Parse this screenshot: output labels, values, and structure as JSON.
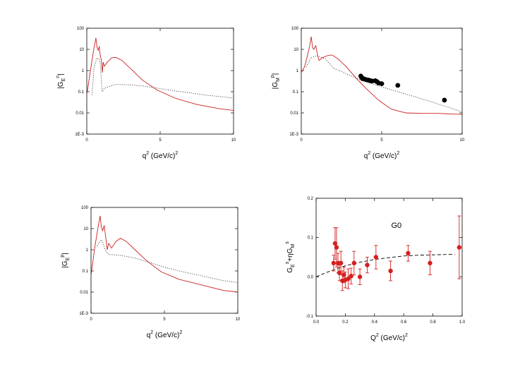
{
  "colors": {
    "model": "#cc1f1f",
    "dotted": "#000000",
    "data": "#000000",
    "g0": "#d42020"
  },
  "chart_data": [
    {
      "id": "top-left",
      "type": "line",
      "scale": "log",
      "ylabel": "|G_E^n|",
      "ylabel_main": "|G",
      "ylabel_sub": "E",
      "ylabel_sup": "n",
      "ylabel_end": "|",
      "xlabel": "q",
      "xlabel_sup": "2",
      "xlabel_rest": " (GeV/c)",
      "xlabel_sup2": "2",
      "xlim": [
        0,
        10
      ],
      "ylim": [
        0.001,
        100
      ],
      "xticks": [
        0,
        5,
        10
      ],
      "xticklabels": [
        "0",
        "5",
        "10"
      ],
      "yticks": [
        100,
        10,
        1,
        0.1,
        0.01,
        0.001
      ],
      "yticklabels": [
        "100",
        "10",
        "1",
        "0.1",
        "0.01",
        "1E-3"
      ],
      "series": [
        {
          "name": "model",
          "style": "solid",
          "x": [
            0,
            0.25,
            0.45,
            0.62,
            0.7,
            0.78,
            0.85,
            0.92,
            1.0,
            1.06,
            1.12,
            1.2,
            1.4,
            1.7,
            2.0,
            2.4,
            3.0,
            3.8,
            4.8,
            6.0,
            7.5,
            9.0,
            10.0
          ],
          "y": [
            0.07,
            1.0,
            8.0,
            35,
            12,
            9,
            14,
            5,
            3,
            0.8,
            2.5,
            1.6,
            2.5,
            4,
            4.2,
            3.0,
            1.2,
            0.35,
            0.12,
            0.05,
            0.025,
            0.016,
            0.013
          ]
        },
        {
          "name": "dotted",
          "style": "dotted",
          "x": [
            0.35,
            0.5,
            0.7,
            0.9,
            1.05,
            1.2,
            2.0,
            3.0,
            4.0,
            5.0,
            6.0,
            7.0,
            8.0,
            9.0,
            10.0
          ],
          "y": [
            0.07,
            1.5,
            4,
            3,
            0.1,
            0.15,
            0.22,
            0.21,
            0.18,
            0.14,
            0.11,
            0.09,
            0.07,
            0.06,
            0.05
          ]
        }
      ]
    },
    {
      "id": "top-right",
      "type": "line",
      "scale": "log",
      "ylabel": "|G_M^p|",
      "ylabel_main": "|G",
      "ylabel_sub": "M",
      "ylabel_sup": "p",
      "ylabel_end": "|",
      "xlabel": "q",
      "xlabel_sup": "2",
      "xlabel_rest": " (GeV/c)",
      "xlabel_sup2": "2",
      "xlim": [
        0,
        10
      ],
      "ylim": [
        0.001,
        100
      ],
      "xticks": [
        0,
        5,
        10
      ],
      "xticklabels": [
        "0",
        "5",
        "10"
      ],
      "yticks": [
        100,
        10,
        1,
        0.1,
        0.01,
        0.001
      ],
      "yticklabels": [
        "100",
        "10",
        "1",
        "0.1",
        "0.01",
        "1E-3"
      ],
      "series": [
        {
          "name": "model",
          "style": "solid",
          "x": [
            0,
            0.2,
            0.35,
            0.5,
            0.62,
            0.7,
            0.78,
            0.9,
            1.0,
            1.1,
            1.3,
            1.6,
            1.9,
            2.3,
            2.8,
            3.4,
            4.0,
            4.8,
            5.6,
            6.5,
            7.5,
            8.5,
            9.5,
            10.0
          ],
          "y": [
            0.8,
            1.5,
            4,
            12,
            40,
            12,
            10,
            15,
            6,
            3,
            4,
            5,
            5.5,
            3.5,
            1.5,
            0.45,
            0.15,
            0.04,
            0.015,
            0.01,
            0.0095,
            0.0095,
            0.0088,
            0.0085
          ]
        },
        {
          "name": "dotted",
          "style": "dotted",
          "x": [
            0.3,
            0.6,
            1.0,
            1.5,
            2.0,
            2.5,
            3.0,
            3.5,
            4.0,
            5.0,
            6.0,
            7.0,
            8.0,
            9.0,
            10.0
          ],
          "y": [
            1.5,
            4,
            5,
            3.5,
            1.3,
            0.9,
            0.6,
            0.42,
            0.3,
            0.17,
            0.1,
            0.06,
            0.035,
            0.02,
            0.011
          ]
        },
        {
          "name": "data",
          "style": "points",
          "x": [
            3.7,
            3.75,
            3.8,
            3.9,
            4.0,
            4.1,
            4.2,
            4.3,
            4.4,
            4.6,
            4.7,
            4.8,
            5.0,
            6.0,
            8.9
          ],
          "y": [
            0.55,
            0.48,
            0.42,
            0.4,
            0.38,
            0.36,
            0.35,
            0.33,
            0.32,
            0.33,
            0.3,
            0.26,
            0.24,
            0.2,
            0.04
          ]
        }
      ]
    },
    {
      "id": "bottom-left",
      "type": "line",
      "scale": "log",
      "ylabel": "|G_E^p|",
      "ylabel_main": "|G",
      "ylabel_sub": "E",
      "ylabel_sup": "p",
      "ylabel_end": "|",
      "xlabel": "q",
      "xlabel_sup": "2",
      "xlabel_rest": " (GeV/c)",
      "xlabel_sup2": "2",
      "xlim": [
        0,
        10
      ],
      "ylim": [
        0.001,
        100
      ],
      "xticks": [
        0,
        5,
        10
      ],
      "xticklabels": [
        "0",
        "5",
        "10"
      ],
      "yticks": [
        100,
        10,
        1,
        0.1,
        0.01,
        0.001
      ],
      "yticklabels": [
        "100",
        "10",
        "1",
        "0.1",
        "0.01",
        "1E-3"
      ],
      "series": [
        {
          "name": "model",
          "style": "solid",
          "x": [
            0,
            0.25,
            0.45,
            0.62,
            0.7,
            0.8,
            0.9,
            1.0,
            1.1,
            1.2,
            1.4,
            1.7,
            2.0,
            2.4,
            3.0,
            3.8,
            4.8,
            6.0,
            7.5,
            9.0,
            10.0
          ],
          "y": [
            0.06,
            1.2,
            9,
            40,
            12,
            8,
            14,
            4,
            1,
            2,
            1.2,
            2.5,
            3.5,
            2.5,
            1.0,
            0.3,
            0.09,
            0.04,
            0.022,
            0.012,
            0.01
          ]
        },
        {
          "name": "dotted",
          "style": "dotted",
          "x": [
            0.4,
            0.7,
            1.0,
            1.2,
            2.0,
            3.0,
            4.0,
            5.0,
            6.0,
            7.0,
            8.0,
            9.0,
            10.0
          ],
          "y": [
            1.5,
            3,
            0.9,
            0.6,
            0.55,
            0.4,
            0.25,
            0.15,
            0.1,
            0.07,
            0.05,
            0.035,
            0.028
          ]
        }
      ]
    },
    {
      "id": "bottom-right",
      "type": "scatter",
      "scale": "linear",
      "annotation": "G0",
      "ylabel": "G_E^s + ηG_M^s",
      "ylabel_main": "G",
      "ylabel_sub": "E",
      "ylabel_sup": "s",
      "ylabel_mid": "+ηG",
      "ylabel_sub2": "M",
      "ylabel_sup2": "s",
      "xlabel": "Q",
      "xlabel_sup": "2",
      "xlabel_rest": " (GeV/c)",
      "xlabel_sup2": "2",
      "xlim": [
        0,
        1
      ],
      "ylim": [
        -0.1,
        0.2
      ],
      "xticks": [
        0,
        0.2,
        0.4,
        0.6,
        0.8,
        1.0
      ],
      "xticklabels": [
        "0.0",
        "0.2",
        "0.4",
        "0.6",
        "0.8",
        "1.0"
      ],
      "yticks": [
        0.2,
        0.1,
        0.0,
        -0.1
      ],
      "yticklabels": [
        "0.2",
        "0.1",
        "0.0",
        "-0.1"
      ],
      "curve": {
        "style": "dashed",
        "x": [
          0,
          0.05,
          0.1,
          0.15,
          0.2,
          0.3,
          0.4,
          0.5,
          0.6,
          0.7,
          0.8,
          0.9,
          0.95
        ],
        "y": [
          0.0,
          0.008,
          0.015,
          0.022,
          0.028,
          0.037,
          0.044,
          0.049,
          0.053,
          0.055,
          0.056,
          0.057,
          0.057
        ]
      },
      "points": {
        "x": [
          0.12,
          0.13,
          0.14,
          0.15,
          0.16,
          0.17,
          0.18,
          0.19,
          0.2,
          0.22,
          0.24,
          0.26,
          0.3,
          0.35,
          0.41,
          0.51,
          0.63,
          0.78,
          0.98
        ],
        "y": [
          0.035,
          0.085,
          0.075,
          0.035,
          0.01,
          0.035,
          -0.01,
          0.005,
          -0.008,
          -0.005,
          0.002,
          0.035,
          0.0,
          0.03,
          0.05,
          0.015,
          0.06,
          0.035,
          0.075
        ],
        "err": [
          0.02,
          0.04,
          0.05,
          0.025,
          0.02,
          0.03,
          0.025,
          0.02,
          0.02,
          0.025,
          0.02,
          0.03,
          0.02,
          0.02,
          0.03,
          0.025,
          0.02,
          0.03,
          0.08
        ]
      }
    }
  ]
}
